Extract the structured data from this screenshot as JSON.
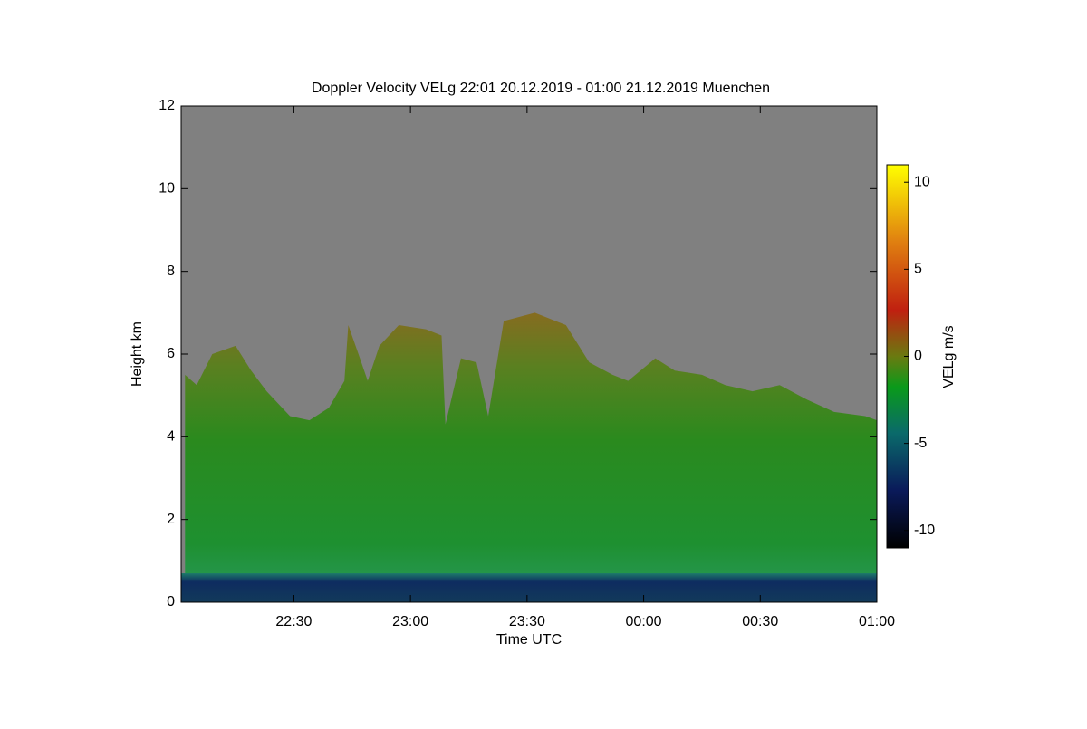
{
  "chart_data": {
    "type": "heatmap",
    "title": "Doppler Velocity VELg   22:01 20.12.2019 - 01:00 21.12.2019 Muenchen",
    "xlabel": "Time UTC",
    "ylabel": "Height km",
    "xlim": [
      1,
      180
    ],
    "xticks": [
      {
        "value": 30,
        "label": "22:30"
      },
      {
        "value": 60,
        "label": "23:00"
      },
      {
        "value": 90,
        "label": "23:30"
      },
      {
        "value": 120,
        "label": "00:00"
      },
      {
        "value": 150,
        "label": "00:30"
      },
      {
        "value": 180,
        "label": "01:00"
      }
    ],
    "ylim": [
      0,
      12
    ],
    "yticks": [
      0,
      2,
      4,
      6,
      8,
      10,
      12
    ],
    "background": "#808080",
    "colorbar": {
      "label": "VELg m/s",
      "lim": [
        -11,
        11
      ],
      "ticks": [
        -10,
        -5,
        0,
        5,
        10
      ]
    },
    "echo": {
      "x": [
        2,
        5,
        9,
        15,
        19,
        23,
        29,
        34,
        39,
        43,
        44,
        47,
        49,
        52,
        57,
        64,
        68,
        69,
        73,
        77,
        80,
        84,
        92,
        100,
        106,
        112,
        116,
        123,
        128,
        135,
        141,
        148,
        155,
        162,
        169,
        177,
        180
      ],
      "top": [
        5.5,
        5.25,
        6.0,
        6.2,
        5.6,
        5.1,
        4.5,
        4.4,
        4.7,
        5.35,
        6.7,
        5.9,
        5.35,
        6.2,
        6.7,
        6.6,
        6.45,
        4.3,
        5.9,
        5.8,
        4.5,
        6.8,
        7.0,
        6.7,
        5.8,
        5.5,
        5.35,
        5.9,
        5.6,
        5.5,
        5.25,
        5.1,
        5.25,
        4.9,
        4.6,
        4.5,
        4.4
      ]
    },
    "boundary_layer_top": 0.7
  }
}
